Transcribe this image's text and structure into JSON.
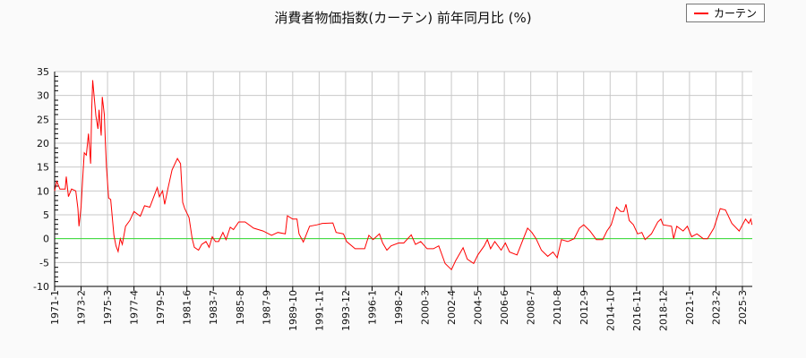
{
  "chart_data": {
    "type": "line",
    "title": "消費者物価指数(カーテン) 前年同月比 (%)",
    "xlabel": "",
    "ylabel": "",
    "ylim": [
      -10,
      35
    ],
    "yticks": [
      -10,
      -5,
      0,
      5,
      10,
      15,
      20,
      25,
      30,
      35
    ],
    "xticks": [
      "1971-1",
      "1973-2",
      "1975-3",
      "1977-4",
      "1979-5",
      "1981-6",
      "1983-7",
      "1985-8",
      "1987-9",
      "1989-10",
      "1991-11",
      "1993-12",
      "1996-1",
      "1998-2",
      "2000-3",
      "2002-4",
      "2004-5",
      "2006-6",
      "2008-7",
      "2010-8",
      "2012-9",
      "2014-10",
      "2016-11",
      "2018-12",
      "2021-1",
      "2023-2",
      "2025-3"
    ],
    "grid": true,
    "legend_position": "top-right",
    "zero_line_color": "#33dd33",
    "series": [
      {
        "name": "カーテン",
        "color": "#ff0000",
        "x": [
          "1971-01",
          "1971-03",
          "1971-06",
          "1971-11",
          "1971-12",
          "1972-02",
          "1972-05",
          "1972-09",
          "1972-11",
          "1972-12",
          "1973-02",
          "1973-04",
          "1973-05",
          "1973-07",
          "1973-09",
          "1973-11",
          "1973-12",
          "1974-01",
          "1974-04",
          "1974-06",
          "1974-07",
          "1974-09",
          "1974-10",
          "1974-12",
          "1975-01",
          "1975-02",
          "1975-04",
          "1975-06",
          "1975-09",
          "1975-11",
          "1976-01",
          "1976-03",
          "1976-05",
          "1976-08",
          "1976-12",
          "1977-04",
          "1977-10",
          "1978-02",
          "1978-07",
          "1979-02",
          "1979-04",
          "1979-07",
          "1979-09",
          "1979-12",
          "1980-04",
          "1980-09",
          "1980-12",
          "1981-02",
          "1981-04",
          "1981-08",
          "1981-11",
          "1982-01",
          "1982-05",
          "1982-08",
          "1982-12",
          "1983-03",
          "1983-06",
          "1983-09",
          "1983-12",
          "1984-04",
          "1984-07",
          "1984-11",
          "1985-02",
          "1985-07",
          "1986-01",
          "1986-09",
          "1987-06",
          "1988-02",
          "1988-08",
          "1989-03",
          "1989-05",
          "1989-10",
          "1990-02",
          "1990-04",
          "1990-08",
          "1991-02",
          "1991-09",
          "1992-02",
          "1992-12",
          "1993-03",
          "1993-10",
          "1994-01",
          "1994-09",
          "1995-06",
          "1995-10",
          "1996-02",
          "1996-08",
          "1996-11",
          "1997-03",
          "1997-07",
          "1998-02",
          "1998-07",
          "1999-02",
          "1999-06",
          "1999-11",
          "2000-05",
          "2000-11",
          "2001-04",
          "2001-10",
          "2002-04",
          "2002-08",
          "2003-03",
          "2003-07",
          "2004-01",
          "2004-05",
          "2004-11",
          "2005-02",
          "2005-05",
          "2005-09",
          "2006-03",
          "2006-07",
          "2006-11",
          "2007-06",
          "2007-12",
          "2008-04",
          "2008-08",
          "2008-12",
          "2009-05",
          "2009-11",
          "2010-04",
          "2010-08",
          "2010-12",
          "2011-06",
          "2011-12",
          "2012-05",
          "2012-09",
          "2013-03",
          "2013-09",
          "2014-03",
          "2014-07",
          "2014-11",
          "2015-04",
          "2015-08",
          "2015-11",
          "2016-01",
          "2016-04",
          "2016-08",
          "2016-12",
          "2017-04",
          "2017-07",
          "2018-01",
          "2018-07",
          "2018-10",
          "2018-12",
          "2019-08",
          "2019-10",
          "2020-01",
          "2020-07",
          "2020-11",
          "2021-03",
          "2021-08",
          "2022-02",
          "2022-06",
          "2022-12",
          "2023-06",
          "2023-11",
          "2024-05",
          "2024-12",
          "2025-06",
          "2025-09",
          "2025-11",
          "2025-12"
        ],
        "values": [
          10,
          12,
          10.4,
          10.4,
          13,
          8.8,
          10.4,
          10,
          6.3,
          2.6,
          6.6,
          14.4,
          18,
          17.5,
          22,
          15.7,
          27,
          33.2,
          25.7,
          23,
          27,
          21.6,
          29.7,
          26,
          20,
          15,
          8.5,
          8.2,
          0.7,
          -1.5,
          -2.7,
          0,
          -1.2,
          2.6,
          3.8,
          5.7,
          4.7,
          6.9,
          6.6,
          10.7,
          8.8,
          10,
          7.2,
          10.4,
          14.4,
          16.8,
          15.7,
          7.6,
          6.3,
          4.4,
          0,
          -1.8,
          -2.4,
          -1.2,
          -0.6,
          -1.8,
          0.4,
          -0.6,
          -0.6,
          1.3,
          -0.2,
          2.4,
          1.9,
          3.5,
          3.5,
          2.2,
          1.6,
          0.7,
          1.3,
          1,
          4.8,
          4.1,
          4.1,
          1,
          -0.7,
          2.6,
          2.9,
          3.2,
          3.3,
          1.3,
          1,
          -0.6,
          -2.1,
          -2.1,
          0.7,
          -0.2,
          1,
          -0.9,
          -2.4,
          -1.5,
          -0.9,
          -0.9,
          0.8,
          -1.2,
          -0.6,
          -2.1,
          -2.1,
          -1.5,
          -5.2,
          -6.5,
          -4.6,
          -1.9,
          -4.3,
          -5.2,
          -3.4,
          -1.5,
          -0.2,
          -2.1,
          -0.6,
          -2.4,
          -0.9,
          -2.8,
          -3.4,
          0,
          2.2,
          1.3,
          0,
          -2.4,
          -3.7,
          -2.8,
          -4,
          -0.2,
          -0.6,
          0,
          2.2,
          2.9,
          1.6,
          -0.2,
          -0.2,
          1.6,
          2.9,
          6.6,
          5.7,
          5.7,
          7.2,
          3.8,
          2.9,
          1,
          1.3,
          -0.2,
          1,
          3.5,
          4.1,
          2.9,
          2.6,
          0,
          2.6,
          1.6,
          2.6,
          0.4,
          1,
          0,
          0,
          2.2,
          6.3,
          6,
          3.2,
          1.6,
          4.1,
          3.2,
          4.1,
          2.9
        ]
      }
    ]
  }
}
